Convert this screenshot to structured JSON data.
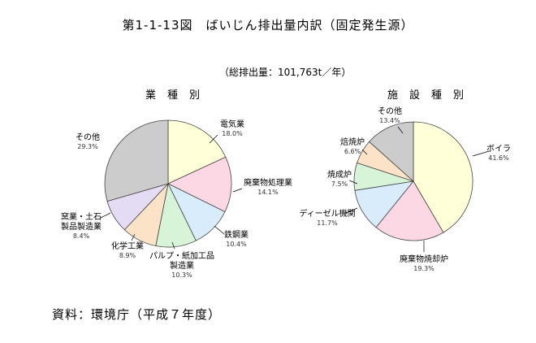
{
  "title": "第1-1-13図　ばいじん排出量内訳（固定発生源）",
  "subtitle": "（総排出量：101,763t／年）",
  "source": "資料：環境庁（平成７年度）",
  "chart_data": [
    {
      "type": "pie",
      "title": "業種別",
      "start_angle_deg": 0,
      "direction": "clockwise",
      "slices": [
        {
          "label": "電気業",
          "value": 18.0,
          "value_label": "18.0%",
          "color": "#ffffd8"
        },
        {
          "label": "廃棄物処理業",
          "value": 14.1,
          "value_label": "14.1%",
          "color": "#fcd8e4"
        },
        {
          "label": "鉄鋼業",
          "value": 10.4,
          "value_label": "10.4%",
          "color": "#d8ecfc"
        },
        {
          "label": "パルプ・紙加工品製造業",
          "value": 10.3,
          "value_label": "10.3%",
          "color": "#d8f4d8"
        },
        {
          "label": "化学工業",
          "value": 8.9,
          "value_label": "8.9%",
          "color": "#fce2c6"
        },
        {
          "label": "窯業・土石製品製造業",
          "value": 8.4,
          "value_label": "8.4%",
          "color": "#e4dcf4"
        },
        {
          "label": "その他",
          "value": 29.3,
          "value_label": "29.3%",
          "color": "#cccccc"
        }
      ]
    },
    {
      "type": "pie",
      "title": "施設種別",
      "start_angle_deg": 0,
      "direction": "clockwise",
      "slices": [
        {
          "label": "ボイラ",
          "value": 41.6,
          "value_label": "41.6%",
          "color": "#ffffd8"
        },
        {
          "label": "廃棄物焼却炉",
          "value": 19.3,
          "value_label": "19.3%",
          "color": "#fcd8e4"
        },
        {
          "label": "ディーゼル機関",
          "value": 11.7,
          "value_label": "11.7%",
          "color": "#d8ecfc"
        },
        {
          "label": "焼成炉",
          "value": 7.5,
          "value_label": "7.5%",
          "color": "#d8f4d8"
        },
        {
          "label": "焙焼炉",
          "value": 6.6,
          "value_label": "6.6%",
          "color": "#fce2c6"
        },
        {
          "label": "その他",
          "value": 13.4,
          "value_label": "13.4%",
          "color": "#cccccc"
        }
      ]
    }
  ]
}
